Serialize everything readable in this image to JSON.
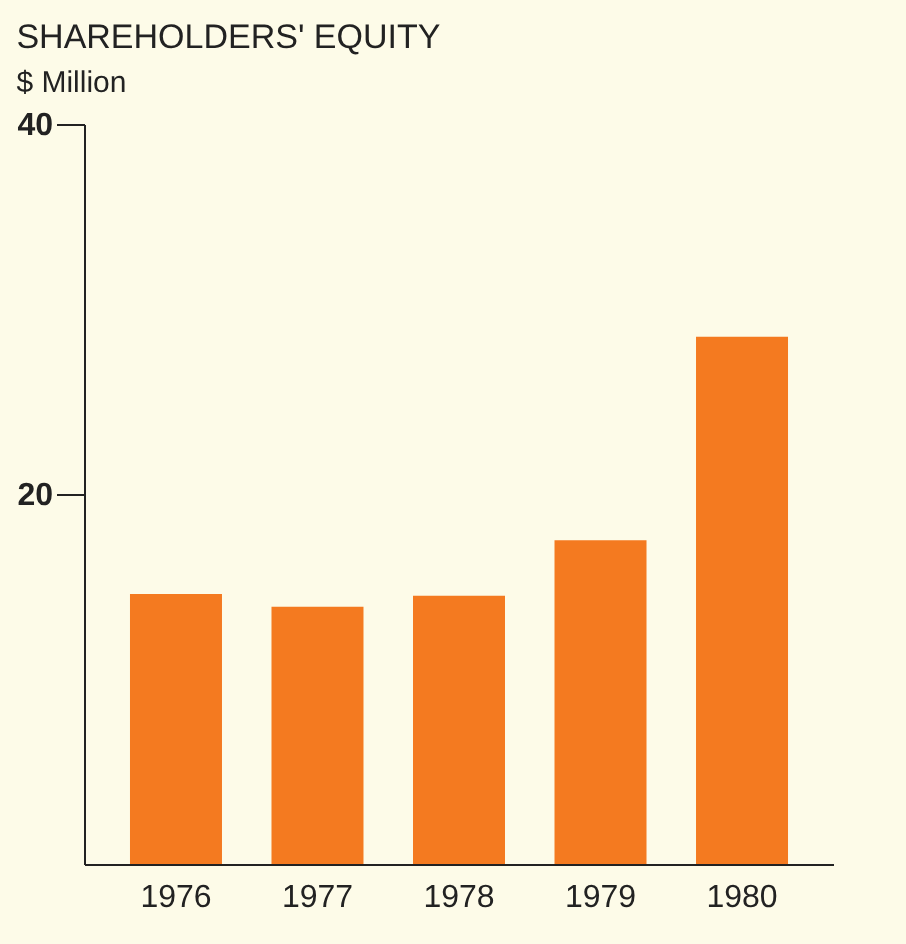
{
  "chart_data": {
    "type": "bar",
    "title": "SHAREHOLDERS' EQUITY",
    "ylabel": "$ Million",
    "categories": [
      "1976",
      "1977",
      "1978",
      "1979",
      "1980"
    ],
    "values": [
      14.6,
      13.9,
      14.5,
      17.5,
      28.5
    ],
    "color": "#f47a20",
    "ylim": [
      0,
      40
    ],
    "yticks": [
      20,
      40
    ],
    "grid": false
  }
}
